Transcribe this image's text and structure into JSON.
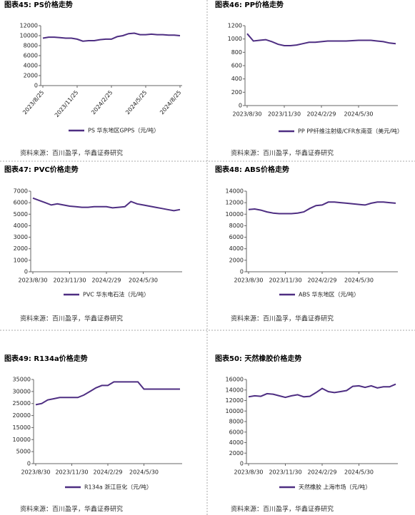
{
  "chart_data": [
    {
      "type": "line",
      "title": "图表45: PS价格走势",
      "source": "资料来源：百川盈孚，华鑫证券研究",
      "categories": [
        "2023/8/25",
        null,
        null,
        null,
        null,
        null,
        "2023/11/25",
        null,
        null,
        null,
        null,
        null,
        "2024/2/25",
        null,
        null,
        null,
        null,
        null,
        "2024/5/25",
        null,
        null,
        null,
        null,
        null,
        "2024/8/25"
      ],
      "series": [
        {
          "name": "PS 华东地区GPPS（元/吨）",
          "color": "#4e2e82",
          "values": [
            9500,
            9700,
            9700,
            9600,
            9500,
            9500,
            9300,
            8900,
            9000,
            9000,
            9200,
            9300,
            9300,
            9800,
            10000,
            10400,
            10500,
            10200,
            10200,
            10300,
            10200,
            10200,
            10100,
            10100,
            10000
          ]
        }
      ],
      "ylim": [
        0,
        12000
      ],
      "yticks": [
        0,
        2000,
        4000,
        6000,
        8000,
        10000,
        12000
      ]
    },
    {
      "type": "line",
      "title": "图表46: PP价格走势",
      "source": "资料来源：百川盈孚，华鑫证券研究",
      "categories": [
        "2023/8/30",
        null,
        null,
        null,
        null,
        null,
        "2023/11/30",
        null,
        null,
        null,
        null,
        null,
        "2024/2/29",
        null,
        null,
        null,
        null,
        null,
        "2024/5/30",
        null,
        null,
        null,
        null,
        null,
        null
      ],
      "series": [
        {
          "name": "PP PP纤维注射级/CFR东南亚（美元/吨）",
          "color": "#4e2e82",
          "values": [
            1080,
            970,
            980,
            990,
            960,
            920,
            900,
            900,
            910,
            930,
            950,
            950,
            960,
            970,
            970,
            970,
            970,
            975,
            980,
            980,
            980,
            970,
            960,
            940,
            930
          ]
        }
      ],
      "ylim": [
        0,
        1200
      ],
      "yticks": [
        0,
        200,
        400,
        600,
        800,
        1000,
        1200
      ]
    },
    {
      "type": "line",
      "title": "图表47: PVC价格走势",
      "source": "资料来源：百川盈孚，华鑫证券研究",
      "categories": [
        "2023/8/30",
        null,
        null,
        null,
        null,
        null,
        "2023/11/30",
        null,
        null,
        null,
        null,
        null,
        "2024/2/29",
        null,
        null,
        null,
        null,
        null,
        "2024/5/30",
        null,
        null,
        null,
        null,
        null,
        null
      ],
      "series": [
        {
          "name": "PVC 华东电石法（元/吨）",
          "color": "#4e2e82",
          "values": [
            6400,
            6200,
            6000,
            5800,
            5900,
            5800,
            5700,
            5650,
            5600,
            5600,
            5650,
            5650,
            5650,
            5550,
            5600,
            5650,
            6100,
            5900,
            5800,
            5700,
            5600,
            5500,
            5400,
            5300,
            5400
          ]
        }
      ],
      "ylim": [
        0,
        7000
      ],
      "yticks": [
        0,
        1000,
        2000,
        3000,
        4000,
        5000,
        6000,
        7000
      ]
    },
    {
      "type": "line",
      "title": "图表48: ABS价格走势",
      "source": "资料来源：百川盈孚，华鑫证券研究",
      "categories": [
        "2023/8/30",
        null,
        null,
        null,
        null,
        null,
        "2023/11/30",
        null,
        null,
        null,
        null,
        null,
        "2024/2/29",
        null,
        null,
        null,
        null,
        null,
        "2024/5/30",
        null,
        null,
        null,
        null,
        null,
        null
      ],
      "series": [
        {
          "name": "ABS 华东地区（元/吨）",
          "color": "#4e2e82",
          "values": [
            10800,
            10900,
            10700,
            10400,
            10200,
            10100,
            10100,
            10100,
            10200,
            10400,
            11000,
            11500,
            11600,
            12100,
            12100,
            12000,
            11900,
            11800,
            11700,
            11600,
            11900,
            12100,
            12100,
            12000,
            11900
          ]
        }
      ],
      "ylim": [
        0,
        14000
      ],
      "yticks": [
        0,
        2000,
        4000,
        6000,
        8000,
        10000,
        12000,
        14000
      ]
    },
    {
      "type": "line",
      "title": "图表49: R134a价格走势",
      "source": "资料来源：百川盈孚，华鑫证券研究",
      "categories": [
        "2023/8/30",
        null,
        null,
        null,
        null,
        null,
        "2023/11/30",
        null,
        null,
        null,
        null,
        null,
        "2024/2/29",
        null,
        null,
        null,
        null,
        null,
        "2024/5/30",
        null,
        null,
        null,
        null,
        null,
        null
      ],
      "series": [
        {
          "name": "R134a 浙江巨化（元/吨）",
          "color": "#4e2e82",
          "values": [
            24500,
            25000,
            26500,
            27000,
            27500,
            27500,
            27500,
            27500,
            28500,
            30000,
            31500,
            32500,
            32500,
            34000,
            34000,
            34000,
            34000,
            34000,
            31000,
            31000,
            31000,
            31000,
            31000,
            31000,
            31000
          ]
        }
      ],
      "ylim": [
        0,
        35000
      ],
      "yticks": [
        0,
        5000,
        10000,
        15000,
        20000,
        25000,
        30000,
        35000
      ]
    },
    {
      "type": "line",
      "title": "图表50: 天然橡胶价格走势",
      "source": "资料来源：百川盈孚，华鑫证券研究",
      "categories": [
        "2023/8/30",
        null,
        null,
        null,
        null,
        null,
        "2023/11/30",
        null,
        null,
        null,
        null,
        null,
        "2024/2/29",
        null,
        null,
        null,
        null,
        null,
        "2024/5/30",
        null,
        null,
        null,
        null,
        null,
        null
      ],
      "series": [
        {
          "name": "天然橡胶 上海市场（元/吨）",
          "color": "#4e2e82",
          "values": [
            12700,
            12900,
            12800,
            13300,
            13200,
            12900,
            12600,
            12900,
            13100,
            12700,
            12800,
            13500,
            14300,
            13700,
            13500,
            13700,
            13900,
            14700,
            14800,
            14500,
            14800,
            14400,
            14600,
            14600,
            15100
          ]
        }
      ],
      "ylim": [
        0,
        16000
      ],
      "yticks": [
        0,
        2000,
        4000,
        6000,
        8000,
        10000,
        12000,
        14000,
        16000
      ]
    }
  ]
}
